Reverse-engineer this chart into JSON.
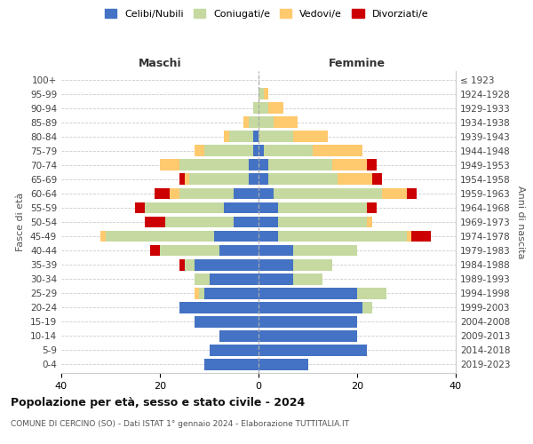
{
  "age_groups": [
    "0-4",
    "5-9",
    "10-14",
    "15-19",
    "20-24",
    "25-29",
    "30-34",
    "35-39",
    "40-44",
    "45-49",
    "50-54",
    "55-59",
    "60-64",
    "65-69",
    "70-74",
    "75-79",
    "80-84",
    "85-89",
    "90-94",
    "95-99",
    "100+"
  ],
  "birth_years": [
    "2019-2023",
    "2014-2018",
    "2009-2013",
    "2004-2008",
    "1999-2003",
    "1994-1998",
    "1989-1993",
    "1984-1988",
    "1979-1983",
    "1974-1978",
    "1969-1973",
    "1964-1968",
    "1959-1963",
    "1954-1958",
    "1949-1953",
    "1944-1948",
    "1939-1943",
    "1934-1938",
    "1929-1933",
    "1924-1928",
    "≤ 1923"
  ],
  "colors": {
    "celibi": "#4472c4",
    "coniugati": "#c5d9a0",
    "vedovi": "#ffc96e",
    "divorziati": "#cc0000"
  },
  "maschi": {
    "celibi": [
      11,
      10,
      8,
      13,
      16,
      11,
      10,
      13,
      8,
      9,
      5,
      7,
      5,
      2,
      2,
      1,
      1,
      0,
      0,
      0,
      0
    ],
    "coniugati": [
      0,
      0,
      0,
      0,
      0,
      1,
      3,
      2,
      12,
      22,
      14,
      16,
      11,
      12,
      14,
      10,
      5,
      2,
      1,
      0,
      0
    ],
    "vedovi": [
      0,
      0,
      0,
      0,
      0,
      1,
      0,
      0,
      0,
      1,
      0,
      0,
      2,
      1,
      4,
      2,
      1,
      1,
      0,
      0,
      0
    ],
    "divorziati": [
      0,
      0,
      0,
      0,
      0,
      0,
      0,
      1,
      2,
      0,
      4,
      2,
      3,
      1,
      0,
      0,
      0,
      0,
      0,
      0,
      0
    ]
  },
  "femmine": {
    "celibi": [
      10,
      22,
      20,
      20,
      21,
      20,
      7,
      7,
      7,
      4,
      4,
      4,
      3,
      2,
      2,
      1,
      0,
      0,
      0,
      0,
      0
    ],
    "coniugati": [
      0,
      0,
      0,
      0,
      2,
      6,
      6,
      8,
      13,
      26,
      18,
      18,
      22,
      14,
      13,
      10,
      7,
      3,
      2,
      1,
      0
    ],
    "vedovi": [
      0,
      0,
      0,
      0,
      0,
      0,
      0,
      0,
      0,
      1,
      1,
      0,
      5,
      7,
      7,
      10,
      7,
      5,
      3,
      1,
      0
    ],
    "divorziati": [
      0,
      0,
      0,
      0,
      0,
      0,
      0,
      0,
      0,
      4,
      0,
      2,
      2,
      2,
      2,
      0,
      0,
      0,
      0,
      0,
      0
    ]
  },
  "xlim": 40,
  "title": "Popolazione per età, sesso e stato civile - 2024",
  "subtitle": "COMUNE DI CERCINO (SO) - Dati ISTAT 1° gennaio 2024 - Elaborazione TUTTITALIA.IT",
  "ylabel_left": "Fasce di età",
  "ylabel_right": "Anni di nascita",
  "xlabel_maschi": "Maschi",
  "xlabel_femmine": "Femmine",
  "legend_labels": [
    "Celibi/Nubili",
    "Coniugati/e",
    "Vedovi/e",
    "Divorziati/e"
  ]
}
